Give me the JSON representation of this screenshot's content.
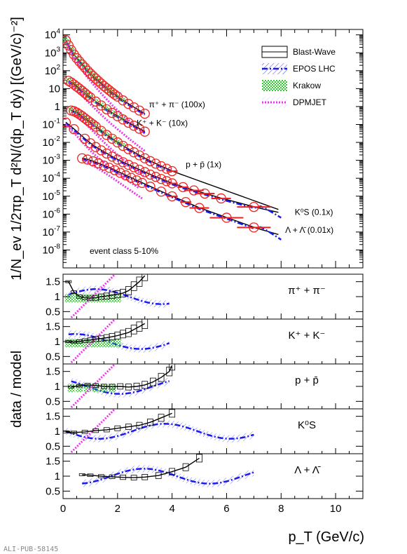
{
  "figure": {
    "credit": "ALI-PUB-58145",
    "event_class": "event class 5-10%"
  },
  "chart_data": [
    {
      "type": "line",
      "panel": "spectra",
      "xlabel": "p_T (GeV/c)",
      "ylabel": "1/N_ev 1/2πp_T d²N/(dp_T dy) [(GeV/c)⁻²]",
      "xlim": [
        0,
        11
      ],
      "ylim": [
        1e-09,
        20000.0
      ],
      "yscale": "log",
      "y_ticks": [
        "10^4",
        "10^3",
        "10^2",
        "10",
        "1",
        "10^-1",
        "10^-2",
        "10^-3",
        "10^-4",
        "10^-5",
        "10^-6",
        "10^-7",
        "10^-8"
      ],
      "legend": {
        "placement": "top-right",
        "entries": [
          {
            "label": "Blast-Wave",
            "style": "box"
          },
          {
            "label": "EPOS LHC",
            "style": "dash-dot-hatch",
            "color": "#1a1aee"
          },
          {
            "label": "Krakow",
            "style": "fill",
            "color": "#33cc33"
          },
          {
            "label": "DPMJET",
            "style": "dot",
            "color": "#ee33ee"
          }
        ]
      },
      "series": [
        {
          "name": "π⁺ + π⁻ (100x)",
          "x": [
            0.1,
            0.2,
            0.3,
            0.4,
            0.5,
            0.6,
            0.7,
            0.8,
            0.9,
            1.0,
            1.1,
            1.2,
            1.3,
            1.4,
            1.5,
            1.6,
            1.7,
            1.8,
            1.9,
            2.0,
            2.2,
            2.4,
            2.6,
            2.8,
            3.0
          ],
          "y": [
            5000,
            2600,
            1400,
            800,
            500,
            330,
            220,
            150,
            100,
            70,
            50,
            36,
            26,
            19,
            14,
            10.5,
            8,
            6,
            4.6,
            3.6,
            2.2,
            1.4,
            0.9,
            0.6,
            0.4
          ],
          "label_text": "π⁺ + π⁻ (100x)",
          "label_x": 3.15,
          "label_y": 0.9
        },
        {
          "name": "K⁺ + K⁻ (10x)",
          "x": [
            0.2,
            0.3,
            0.4,
            0.5,
            0.6,
            0.7,
            0.8,
            0.9,
            1.0,
            1.2,
            1.4,
            1.6,
            1.8,
            2.0,
            2.2,
            2.4,
            2.6,
            2.8,
            3.0
          ],
          "y": [
            27,
            22,
            17,
            13,
            10,
            7.5,
            5.6,
            4.2,
            3.2,
            1.9,
            1.15,
            0.7,
            0.44,
            0.29,
            0.19,
            0.125,
            0.085,
            0.058,
            0.04
          ],
          "label_text": "K⁺ + K⁻ (10x)",
          "label_x": 2.7,
          "label_y": 0.085
        },
        {
          "name": "p + p̄ (1x)",
          "x": [
            0.3,
            0.4,
            0.5,
            0.6,
            0.7,
            0.8,
            0.9,
            1.0,
            1.1,
            1.2,
            1.4,
            1.6,
            1.8,
            2.0,
            2.2,
            2.4,
            2.6,
            2.8,
            3.0,
            3.2,
            3.4,
            3.6,
            3.8,
            4.0
          ],
          "y": [
            0.6,
            0.55,
            0.46,
            0.37,
            0.29,
            0.22,
            0.17,
            0.13,
            0.1,
            0.076,
            0.044,
            0.026,
            0.016,
            0.01,
            0.0064,
            0.0042,
            0.0028,
            0.0019,
            0.0013,
            0.0009,
            0.00065,
            0.00047,
            0.00034,
            0.00025
          ],
          "label_text": "p + p̄ (1x)",
          "label_x": 4.5,
          "label_y": 0.00042
        },
        {
          "name": "K⁰S (0.1x)",
          "x": [
            0.1,
            0.4,
            0.8,
            1.0,
            1.2,
            1.4,
            1.6,
            1.8,
            2.0,
            2.2,
            2.4,
            2.6,
            2.8,
            3.0,
            3.2,
            3.4,
            3.6,
            3.8,
            4.0,
            4.4,
            4.8,
            5.2,
            5.8,
            7.0
          ],
          "y": [
            0.13,
            0.055,
            0.016,
            0.009,
            0.0055,
            0.0036,
            0.0024,
            0.0016,
            0.0011,
            0.00078,
            0.00056,
            0.00041,
            0.0003,
            0.00022,
            0.00016,
            0.00012,
            9.1e-05,
            6.9e-05,
            5.2e-05,
            3.2e-05,
            2.1e-05,
            1.4e-05,
            7.5e-06,
            2.5e-06
          ],
          "label_text": "K⁰S (0.1x)",
          "label_x": 8.5,
          "label_y": 9e-07
        },
        {
          "name": "Λ + Λ̄ (0.01x)",
          "x": [
            0.7,
            0.9,
            1.1,
            1.3,
            1.5,
            1.7,
            1.9,
            2.1,
            2.3,
            2.5,
            2.7,
            2.9,
            3.2,
            3.6,
            4.0,
            4.5,
            5.0,
            6.0,
            7.0
          ],
          "y": [
            0.0013,
            0.0011,
            0.00088,
            0.00068,
            0.00051,
            0.00038,
            0.00028,
            0.0002,
            0.000145,
            0.000105,
            7.6e-05,
            5.5e-05,
            3.4e-05,
            1.8e-05,
            9.8e-06,
            4.7e-06,
            2.2e-06,
            6.3e-07,
            1.8e-07
          ],
          "label_text": "Λ + Λ̄ (0.01x)",
          "label_x": 8.15,
          "label_y": 9e-08
        }
      ]
    },
    {
      "type": "line",
      "panel": "ratio-pion",
      "label": "π⁺ + π⁻",
      "ylim": [
        0.25,
        1.75
      ],
      "yticks": [
        0.5,
        1,
        1.5
      ],
      "ytick_labels": [
        "0.5",
        "1",
        "1.5"
      ],
      "x": [
        0.2,
        0.4,
        0.6,
        0.8,
        1.0,
        1.2,
        1.4,
        1.6,
        1.8,
        2.0,
        2.2,
        2.4,
        2.6,
        2.8,
        3.0
      ],
      "values": [
        1.5,
        1.15,
        1.0,
        0.96,
        0.95,
        0.96,
        1.0,
        1.02,
        1.05,
        1.08,
        1.12,
        1.2,
        1.35,
        1.5,
        1.7
      ]
    },
    {
      "type": "line",
      "panel": "ratio-kaon",
      "label": "K⁺ + K⁻",
      "ylim": [
        0.25,
        1.75
      ],
      "yticks": [
        0.5,
        1,
        1.5
      ],
      "ytick_labels": [
        "0.5",
        "1",
        "1.5"
      ],
      "x": [
        0.2,
        0.4,
        0.6,
        0.8,
        1.0,
        1.2,
        1.4,
        1.6,
        1.8,
        2.0,
        2.2,
        2.4,
        2.6,
        2.8,
        3.0
      ],
      "values": [
        1.0,
        0.98,
        1.0,
        1.03,
        1.05,
        1.08,
        1.1,
        1.13,
        1.16,
        1.2,
        1.25,
        1.3,
        1.4,
        1.5,
        1.6
      ]
    },
    {
      "type": "line",
      "panel": "ratio-proton",
      "label": "p + p̄",
      "ylim": [
        0.25,
        1.75
      ],
      "yticks": [
        0.5,
        1,
        1.5
      ],
      "ytick_labels": [
        "0.5",
        "1",
        "1.5"
      ],
      "x": [
        0.3,
        0.6,
        0.9,
        1.2,
        1.5,
        1.8,
        2.1,
        2.4,
        2.7,
        3.0,
        3.3,
        3.6,
        3.9,
        4.0
      ],
      "values": [
        0.98,
        1.02,
        1.05,
        1.03,
        1.0,
        0.99,
        1.0,
        0.98,
        1.0,
        1.05,
        1.15,
        1.3,
        1.5,
        1.7
      ]
    },
    {
      "type": "line",
      "panel": "ratio-k0s",
      "label": "K⁰S",
      "ylim": [
        0.25,
        1.75
      ],
      "yticks": [
        0.5,
        1,
        1.5
      ],
      "ytick_labels": [
        "0.5",
        "1",
        "1.5"
      ],
      "x": [
        0.1,
        0.4,
        0.8,
        1.2,
        1.6,
        2.0,
        2.4,
        2.8,
        3.2,
        3.6,
        4.0
      ],
      "values": [
        0.98,
        0.96,
        0.98,
        1.02,
        1.05,
        1.1,
        1.15,
        1.2,
        1.3,
        1.45,
        1.6
      ]
    },
    {
      "type": "line",
      "panel": "ratio-lambda",
      "label": "Λ + Λ̄",
      "ylim": [
        0.25,
        1.75
      ],
      "yticks": [
        0.5,
        1,
        1.5
      ],
      "ytick_labels": [
        "0.5",
        "1",
        "1.5"
      ],
      "x": [
        0.7,
        1.0,
        1.4,
        1.8,
        2.2,
        2.6,
        3.0,
        3.5,
        4.0,
        4.5,
        5.0
      ],
      "values": [
        1.05,
        1.03,
        1.0,
        0.98,
        0.96,
        0.95,
        0.97,
        1.02,
        1.15,
        1.3,
        1.6
      ]
    }
  ],
  "ratio_axis": {
    "ylabel": "data / model",
    "xlabel": "p_T (GeV/c)",
    "xticks": [
      0,
      2,
      4,
      6,
      8,
      10
    ],
    "xtick_labels": [
      "0",
      "2",
      "4",
      "6",
      "8",
      "10"
    ]
  }
}
